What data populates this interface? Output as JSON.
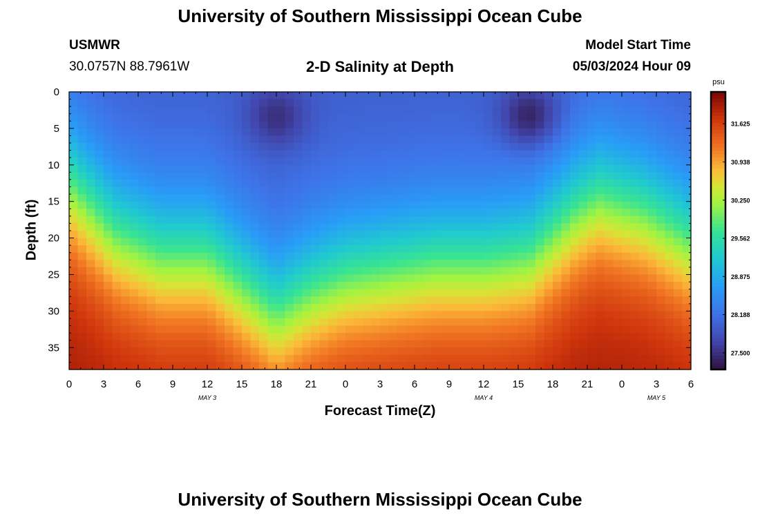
{
  "header": {
    "title": "University of Southern Mississippi Ocean Cube",
    "station": "USMWR",
    "coordinates": "30.0757N  88.7961W",
    "subtitle": "2-D Salinity at Depth",
    "model_start_label": "Model Start Time",
    "model_start_value": "05/03/2024 Hour 09"
  },
  "footer": {
    "title": "University of Southern Mississippi Ocean Cube"
  },
  "chart_data": {
    "type": "heatmap",
    "title": "2-D Salinity at Depth",
    "xlabel": "Forecast Time(Z)",
    "ylabel": "Depth (ft)",
    "x_range_hours": [
      0,
      54
    ],
    "y_range_ft": [
      0,
      38
    ],
    "y_inverted": true,
    "x_tick_labels": [
      "0",
      "3",
      "6",
      "9",
      "12",
      "15",
      "18",
      "21",
      "0",
      "3",
      "6",
      "9",
      "12",
      "15",
      "18",
      "21",
      "0",
      "3",
      "6"
    ],
    "y_tick_labels": [
      "0",
      "5",
      "10",
      "15",
      "20",
      "25",
      "30",
      "35"
    ],
    "date_labels": [
      {
        "text": "MAY 3",
        "hour": 12
      },
      {
        "text": "MAY 4",
        "hour": 36
      },
      {
        "text": "MAY 5",
        "hour": 51
      }
    ],
    "colorbar": {
      "unit": "psu",
      "min": 27.2,
      "max": 32.2,
      "tick_labels": [
        "27.500",
        "28.188",
        "28.875",
        "29.562",
        "30.250",
        "30.938",
        "31.625"
      ]
    },
    "field_description": "Surface layer fresher (~27.3-28.2 psu) with freshest cores near hour 18 and hour 40 at 0-8 ft; isohaline transition to saline bottom water (~31-32 psu) deepening to ~30 ft around hour 18 and ~25 ft around hour 42.",
    "halocline_depth_ft": [
      [
        0,
        13
      ],
      [
        4,
        20
      ],
      [
        8,
        23
      ],
      [
        12,
        23
      ],
      [
        15,
        27
      ],
      [
        18,
        31
      ],
      [
        21,
        28
      ],
      [
        24,
        26
      ],
      [
        28,
        25
      ],
      [
        32,
        24
      ],
      [
        36,
        24
      ],
      [
        40,
        23
      ],
      [
        42,
        20
      ],
      [
        44,
        17
      ],
      [
        46,
        15
      ],
      [
        48,
        16
      ],
      [
        50,
        17
      ],
      [
        54,
        21
      ]
    ],
    "fresh_cores": [
      {
        "hour": 18,
        "depth_ft": 3.5,
        "min_psu": 27.45
      },
      {
        "hour": 40,
        "depth_ft": 3.5,
        "min_psu": 27.25
      }
    ],
    "colors": {
      "low": "#30123b",
      "mid": "#34c5a3",
      "high": "#7a0403"
    }
  }
}
